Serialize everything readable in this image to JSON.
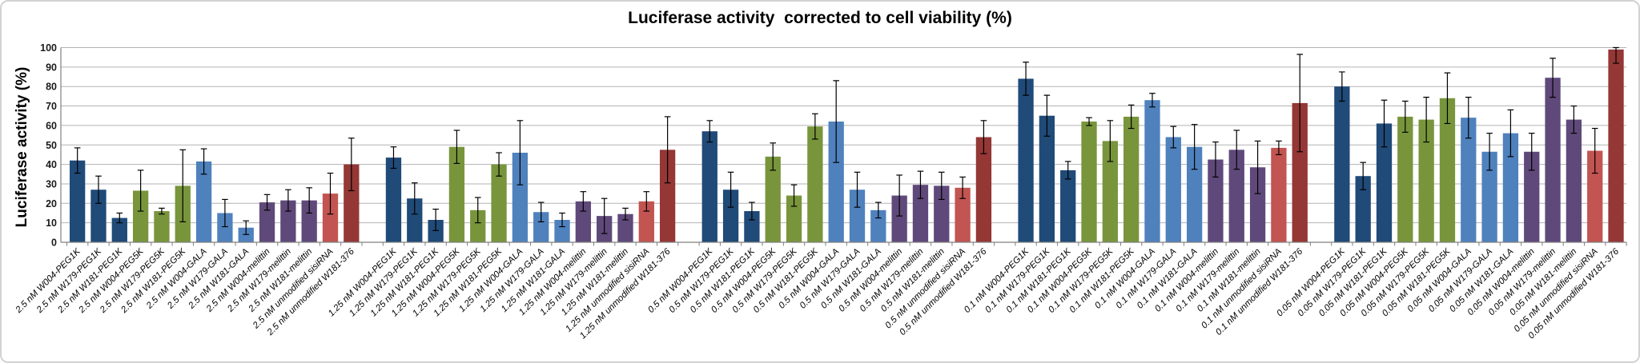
{
  "chart_data": {
    "type": "bar",
    "title": "Luciferase activity  corrected to cell viability (%)",
    "ylabel": "Luciferase activity (%)",
    "xlabel": "",
    "ylim": [
      0,
      100
    ],
    "yticks": [
      0,
      10,
      20,
      30,
      40,
      50,
      60,
      70,
      80,
      90,
      100
    ],
    "grid": true,
    "legend": "none",
    "error_bars": true,
    "group_labels": [
      "2.5 nM",
      "1.25 nM",
      "0.5 nM",
      "0.1 nM",
      "0.05 nM"
    ],
    "variants": [
      "W004-PEG1K",
      "W179-PEG1K",
      "W181-PEG1K",
      "W004-PEG5K",
      "W179-PEG5K",
      "W181-PEG5K",
      "W004-GALA",
      "W179-GALA",
      "W181-GALA",
      "W004-melittin",
      "W179-melittin",
      "W181-melittin",
      "unmodified sisiRNA",
      "unmodified W181-376"
    ],
    "variant_color_keys": [
      "darkblue",
      "darkblue",
      "darkblue",
      "green",
      "green",
      "green",
      "lightblue",
      "lightblue",
      "lightblue",
      "purple",
      "purple",
      "purple",
      "salmon",
      "darkred"
    ],
    "colors": {
      "darkblue": "#204A78",
      "green": "#78953C",
      "lightblue": "#4F81BD",
      "purple": "#5F497A",
      "salmon": "#C25451",
      "darkred": "#943735"
    },
    "style": {
      "grid_color": "#B3B3B3",
      "axis_color": "#808080",
      "error_bar_color": "#000000",
      "tick_label_color": "#1A1A1A",
      "category_label_color": "#000000"
    },
    "series": [
      {
        "name": "2.5 nM",
        "values": [
          42,
          27,
          12.5,
          26.5,
          16,
          29,
          41.5,
          15,
          7.5,
          20.5,
          21.5,
          21.5,
          25,
          40
        ],
        "errors": [
          6.5,
          7,
          2.5,
          10.5,
          1.5,
          18.5,
          6.5,
          7,
          3.5,
          4,
          5.5,
          6.5,
          10.5,
          13.5
        ]
      },
      {
        "name": "1.25 nM",
        "values": [
          43.5,
          22.5,
          11.5,
          49,
          16.5,
          40,
          46,
          15.5,
          11.5,
          21,
          13.5,
          14.5,
          21,
          47.5
        ],
        "errors": [
          5.5,
          8,
          5.5,
          8.5,
          6.5,
          6,
          16.5,
          5,
          3.5,
          5,
          9,
          3,
          5,
          17
        ]
      },
      {
        "name": "0.5 nM",
        "values": [
          57,
          27,
          16,
          44,
          24,
          59.5,
          62,
          27,
          16.5,
          24,
          29.5,
          29,
          28,
          54
        ],
        "errors": [
          5.5,
          9,
          4.5,
          7,
          5.5,
          6.5,
          21,
          9,
          4,
          10.5,
          7,
          7,
          5.5,
          8.5
        ]
      },
      {
        "name": "0.1 nM",
        "values": [
          84,
          65,
          37,
          62,
          52,
          64.5,
          73,
          54,
          49,
          42.5,
          47.5,
          38.5,
          48.5,
          71.5
        ],
        "errors": [
          8.5,
          10.5,
          4.5,
          2,
          10.5,
          6,
          3.5,
          5.5,
          11.5,
          9,
          10,
          13.5,
          3.5,
          25
        ]
      },
      {
        "name": "0.05 nM",
        "values": [
          80,
          34,
          61,
          64.5,
          63,
          74,
          64,
          46.5,
          56,
          46.5,
          84.5,
          63,
          47,
          99
        ],
        "errors": [
          7.5,
          7,
          12,
          8,
          11.5,
          13,
          10.5,
          9.5,
          12,
          9.5,
          10,
          7,
          11.5,
          7
        ]
      }
    ]
  }
}
